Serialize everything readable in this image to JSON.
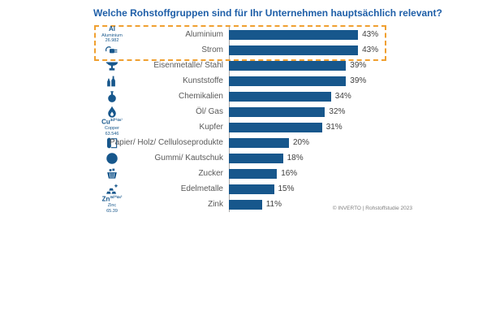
{
  "title": "Welche Rohstoffgruppen sind für Ihr Unternehmen hauptsächlich relevant?",
  "footer": "© INVERTO | Rohstoffstudie 2023",
  "colors": {
    "bar": "#17578C",
    "title": "#1F5FA8",
    "highlight_border": "#F0A030",
    "label": "#595959",
    "value": "#404040",
    "icon": "#17578C",
    "footer": "#7F7F7F",
    "axis": "#A9A9A9"
  },
  "chart_data": {
    "type": "bar",
    "orientation": "horizontal",
    "title": "Welche Rohstoffgruppen sind für Ihr Unternehmen hauptsächlich relevant?",
    "xlabel": "",
    "ylabel": "",
    "xlim": [
      0,
      50
    ],
    "grid": false,
    "legend": false,
    "value_suffix": "%",
    "categories": [
      "Aluminium",
      "Strom",
      "Eisenmetalle/ Stahl",
      "Kunststoffe",
      "Chemikalien",
      "Öl/ Gas",
      "Kupfer",
      "Papier/ Holz/ Celluloseprodukte",
      "Gummi/ Kautschuk",
      "Zucker",
      "Edelmetalle",
      "Zink"
    ],
    "values": [
      43,
      43,
      39,
      39,
      34,
      32,
      31,
      20,
      18,
      16,
      15,
      11
    ],
    "rows": [
      {
        "label": "Aluminium",
        "value": 43,
        "icon": "element-aluminium",
        "element": {
          "symbol": "Al",
          "config": "",
          "name": "Aluminium",
          "mass": "26.982"
        }
      },
      {
        "label": "Strom",
        "value": 43,
        "icon": "power-plug"
      },
      {
        "label": "Eisenmetalle/ Stahl",
        "value": 39,
        "icon": "anvil"
      },
      {
        "label": "Kunststoffe",
        "value": 39,
        "icon": "plastic-bottles"
      },
      {
        "label": "Chemikalien",
        "value": 34,
        "icon": "flask"
      },
      {
        "label": "Öl/ Gas",
        "value": 32,
        "icon": "flame"
      },
      {
        "label": "Kupfer",
        "value": 31,
        "icon": "element-copper",
        "element": {
          "symbol": "Cu",
          "config": "3d¹⁰4s¹",
          "name": "Copper",
          "mass": "63.546"
        }
      },
      {
        "label": "Papier/ Holz/ Celluloseprodukte",
        "value": 20,
        "icon": "paper-roll"
      },
      {
        "label": "Gummi/ Kautschuk",
        "value": 18,
        "icon": "tire"
      },
      {
        "label": "Zucker",
        "value": 16,
        "icon": "sugar-basket"
      },
      {
        "label": "Edelmetalle",
        "value": 15,
        "icon": "gold-bars"
      },
      {
        "label": "Zink",
        "value": 11,
        "icon": "element-zinc",
        "element": {
          "symbol": "Zn",
          "config": "3d¹⁰4s²",
          "name": "Zinc",
          "mass": "65.39"
        }
      }
    ],
    "highlight": {
      "categories": [
        "Aluminium",
        "Strom"
      ],
      "style": "orange dashed box around top two rows"
    }
  }
}
